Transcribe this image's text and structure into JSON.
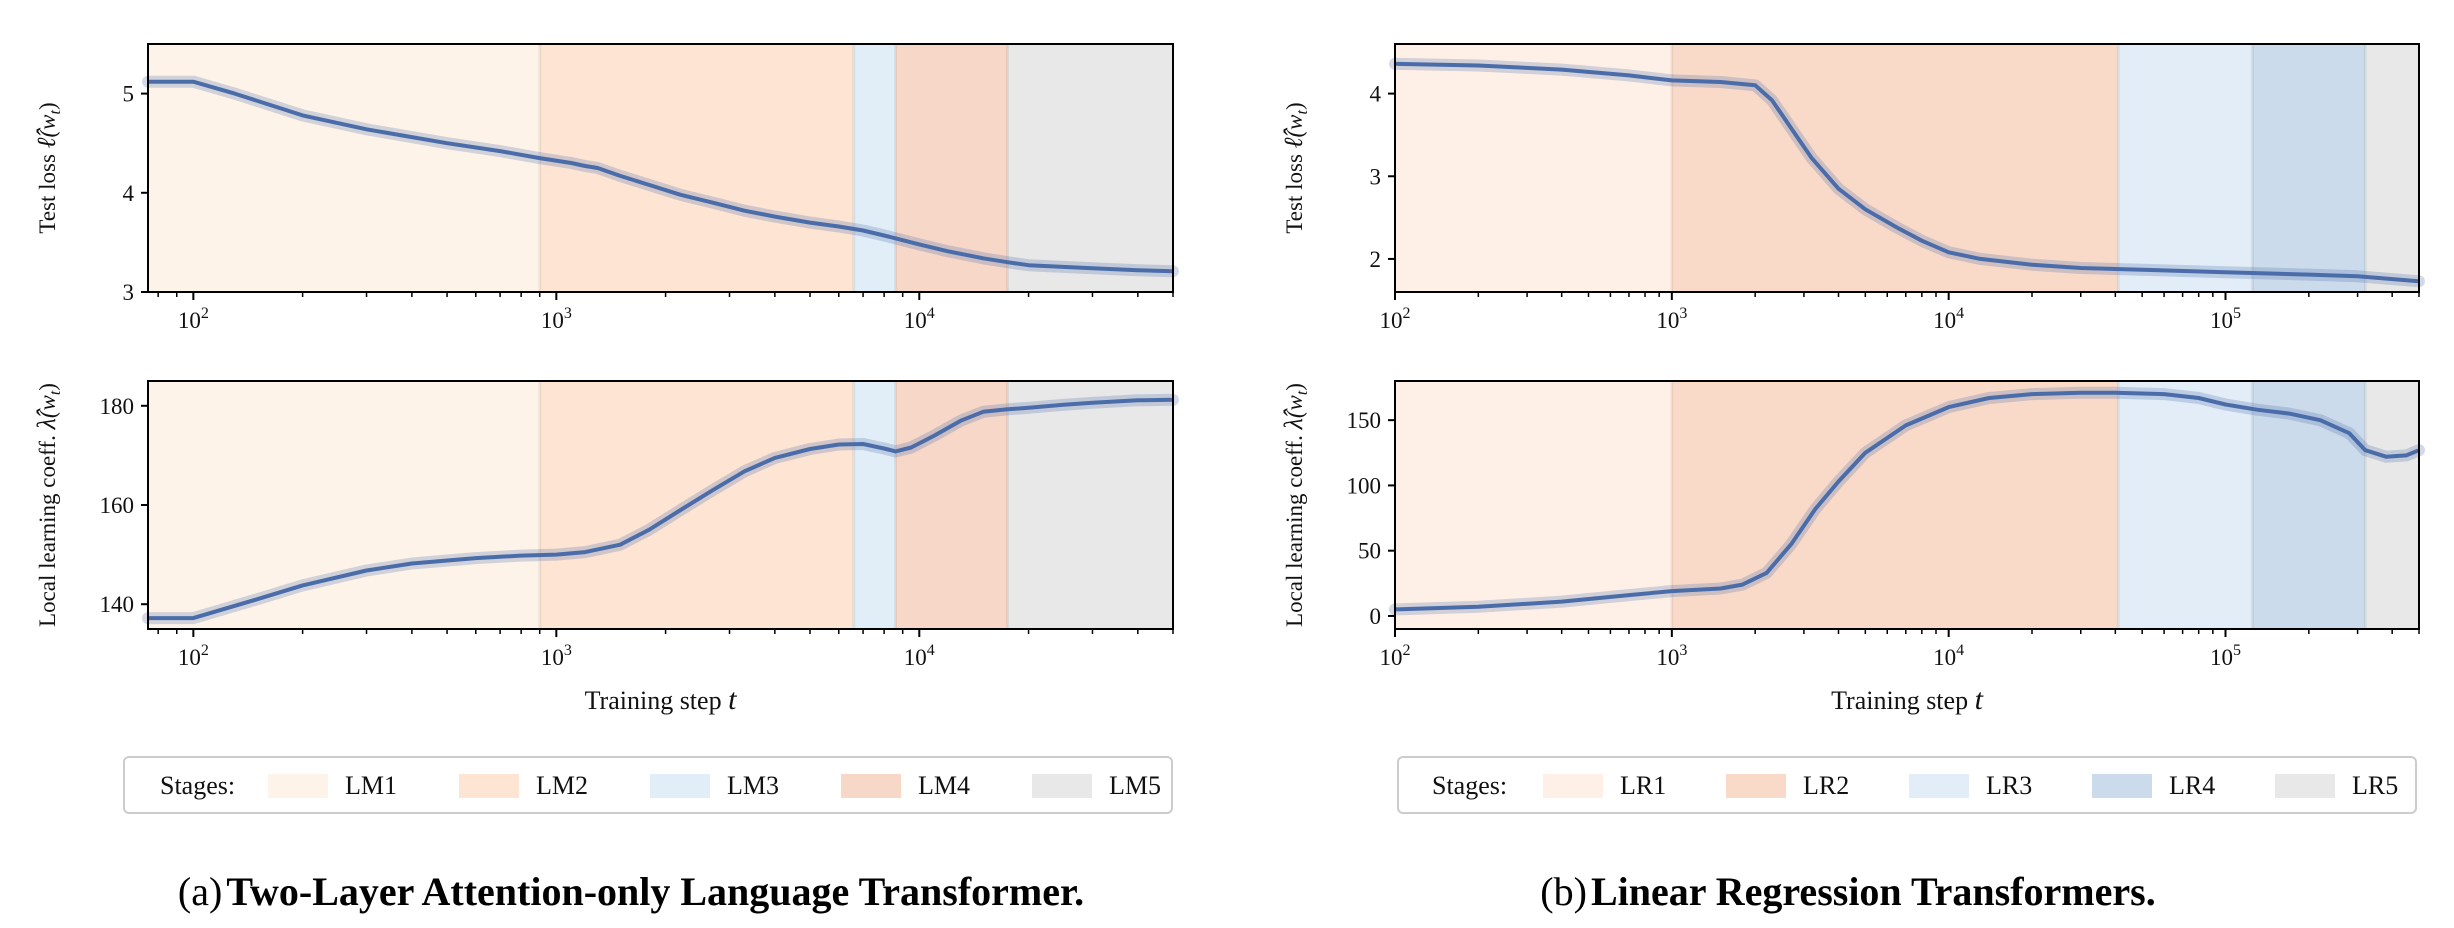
{
  "figure": {
    "panel_a": {
      "caption_prefix": "(a)",
      "caption_title": "Two-Layer Attention-only Language Transformer.",
      "legend": {
        "title": "Stages:",
        "items": [
          {
            "label": "LM1",
            "color": "#fef3e9"
          },
          {
            "label": "LM2",
            "color": "#fde4d3"
          },
          {
            "label": "LM3",
            "color": "#e2eef7"
          },
          {
            "label": "LM4",
            "color": "#f6d7c8"
          },
          {
            "label": "LM5",
            "color": "#e8e8e8"
          }
        ]
      }
    },
    "panel_b": {
      "caption_prefix": "(b)",
      "caption_title": "Linear Regression Transformers.",
      "legend": {
        "title": "Stages:",
        "items": [
          {
            "label": "LR1",
            "color": "#fef0e6"
          },
          {
            "label": "LR2",
            "color": "#f9dac9"
          },
          {
            "label": "LR3",
            "color": "#e2edf7"
          },
          {
            "label": "LR4",
            "color": "#cbdbeb"
          },
          {
            "label": "LR5",
            "color": "#e8e8e8"
          }
        ]
      }
    }
  },
  "chart_data": [
    {
      "id": "a-loss",
      "type": "line",
      "ylabel": "Test loss ℓ̂(w_t)",
      "ylabel_main": "Test loss",
      "ylabel_sym": "ℓ̂",
      "ylabel_arg": "(w",
      "ylabel_sub": "t",
      "ylabel_close": ")",
      "xlabel": "",
      "xscale": "log",
      "xlim": [
        75,
        50000
      ],
      "ylim": [
        3,
        5.5
      ],
      "yticks": [
        3,
        4,
        5
      ],
      "xticks": [
        {
          "value": 100,
          "base": "10",
          "exp": "2"
        },
        {
          "value": 1000,
          "base": "10",
          "exp": "3"
        },
        {
          "value": 10000,
          "base": "10",
          "exp": "4"
        }
      ],
      "stages": [
        [
          75,
          900
        ],
        [
          900,
          6600
        ],
        [
          6600,
          8600
        ],
        [
          8600,
          17500
        ],
        [
          17500,
          50000
        ]
      ],
      "series": [
        {
          "name": "test loss",
          "color": "#4a6daa",
          "x": [
            75,
            100,
            130,
            200,
            300,
            500,
            700,
            900,
            1100,
            1200,
            1300,
            1500,
            1800,
            2200,
            2700,
            3300,
            4000,
            5000,
            6000,
            7000,
            8000,
            10000,
            12000,
            15000,
            17500,
            20000,
            30000,
            40000,
            50000
          ],
          "y": [
            5.12,
            5.12,
            5.0,
            4.78,
            4.64,
            4.5,
            4.42,
            4.35,
            4.3,
            4.27,
            4.25,
            4.17,
            4.08,
            3.98,
            3.9,
            3.82,
            3.76,
            3.7,
            3.66,
            3.62,
            3.57,
            3.48,
            3.41,
            3.34,
            3.3,
            3.27,
            3.24,
            3.22,
            3.21
          ]
        }
      ]
    },
    {
      "id": "a-llc",
      "type": "line",
      "ylabel": "Local learning coeff. λ̂(w_t)",
      "ylabel_main": "Local learning coeff.",
      "ylabel_sym": "λ̂",
      "ylabel_arg": "(w",
      "ylabel_sub": "t",
      "ylabel_close": ")",
      "xlabel": "Training step t",
      "xlabel_main": "Training step",
      "xlabel_var": "t",
      "xscale": "log",
      "xlim": [
        75,
        50000
      ],
      "ylim": [
        135,
        185
      ],
      "yticks": [
        140,
        160,
        180
      ],
      "xticks": [
        {
          "value": 100,
          "base": "10",
          "exp": "2"
        },
        {
          "value": 1000,
          "base": "10",
          "exp": "3"
        },
        {
          "value": 10000,
          "base": "10",
          "exp": "4"
        }
      ],
      "stages": [
        [
          75,
          900
        ],
        [
          900,
          6600
        ],
        [
          6600,
          8600
        ],
        [
          8600,
          17500
        ],
        [
          17500,
          50000
        ]
      ],
      "series": [
        {
          "name": "llc",
          "color": "#4a6daa",
          "x": [
            75,
            100,
            150,
            200,
            300,
            400,
            600,
            800,
            1000,
            1200,
            1500,
            1800,
            2200,
            2700,
            3300,
            4000,
            5000,
            6000,
            7000,
            8000,
            8600,
            9500,
            11000,
            13000,
            15000,
            17500,
            20000,
            25000,
            30000,
            40000,
            50000
          ],
          "y": [
            137.2,
            137.2,
            141,
            143.8,
            146.8,
            148.2,
            149.3,
            149.8,
            150,
            150.5,
            152,
            155,
            159,
            163,
            166.8,
            169.5,
            171.3,
            172.2,
            172.3,
            171.4,
            170.8,
            171.6,
            174,
            177,
            178.8,
            179.3,
            179.6,
            180.2,
            180.6,
            181.1,
            181.2
          ]
        }
      ]
    },
    {
      "id": "b-loss",
      "type": "line",
      "ylabel": "Test loss ℓ̂(w_t)",
      "ylabel_main": "Test loss",
      "ylabel_sym": "ℓ̂",
      "ylabel_arg": "(w",
      "ylabel_sub": "t",
      "ylabel_close": ")",
      "xlabel": "",
      "xscale": "log",
      "xlim": [
        100,
        500000
      ],
      "ylim": [
        1.6,
        4.6
      ],
      "yticks": [
        2,
        3,
        4
      ],
      "xticks": [
        {
          "value": 100,
          "base": "10",
          "exp": "2"
        },
        {
          "value": 1000,
          "base": "10",
          "exp": "3"
        },
        {
          "value": 10000,
          "base": "10",
          "exp": "4"
        },
        {
          "value": 100000,
          "base": "10",
          "exp": "5"
        }
      ],
      "stages": [
        [
          100,
          1000
        ],
        [
          1000,
          41000
        ],
        [
          41000,
          125000
        ],
        [
          125000,
          320000
        ],
        [
          320000,
          500000
        ]
      ],
      "series": [
        {
          "name": "test loss",
          "color": "#4a6daa",
          "x": [
            100,
            200,
            400,
            700,
            1000,
            1500,
            2000,
            2300,
            2700,
            3200,
            4000,
            5000,
            6500,
            8000,
            10000,
            13000,
            20000,
            30000,
            50000,
            100000,
            200000,
            300000,
            500000
          ],
          "y": [
            4.36,
            4.34,
            4.29,
            4.22,
            4.16,
            4.14,
            4.1,
            3.92,
            3.58,
            3.22,
            2.85,
            2.6,
            2.38,
            2.22,
            2.08,
            2.0,
            1.93,
            1.89,
            1.87,
            1.84,
            1.81,
            1.79,
            1.73
          ]
        }
      ]
    },
    {
      "id": "b-llc",
      "type": "line",
      "ylabel": "Local learning coeff. λ̂(w_t)",
      "ylabel_main": "Local learning coeff.",
      "ylabel_sym": "λ̂",
      "ylabel_arg": "(w",
      "ylabel_sub": "t",
      "ylabel_close": ")",
      "xlabel": "Training step t",
      "xlabel_main": "Training step",
      "xlabel_var": "t",
      "xscale": "log",
      "xlim": [
        100,
        500000
      ],
      "ylim": [
        -10,
        180
      ],
      "yticks": [
        0,
        50,
        100,
        150
      ],
      "xticks": [
        {
          "value": 100,
          "base": "10",
          "exp": "2"
        },
        {
          "value": 1000,
          "base": "10",
          "exp": "3"
        },
        {
          "value": 10000,
          "base": "10",
          "exp": "4"
        },
        {
          "value": 100000,
          "base": "10",
          "exp": "5"
        }
      ],
      "stages": [
        [
          100,
          1000
        ],
        [
          1000,
          41000
        ],
        [
          41000,
          125000
        ],
        [
          125000,
          320000
        ],
        [
          320000,
          500000
        ]
      ],
      "series": [
        {
          "name": "llc",
          "color": "#4a6daa",
          "x": [
            100,
            200,
            400,
            700,
            1000,
            1500,
            1800,
            2200,
            2700,
            3300,
            4000,
            5000,
            7000,
            10000,
            14000,
            20000,
            30000,
            40000,
            60000,
            80000,
            100000,
            130000,
            170000,
            220000,
            280000,
            320000,
            380000,
            450000,
            500000
          ],
          "y": [
            5,
            7,
            11,
            16,
            19,
            21,
            24,
            33,
            55,
            82,
            103,
            125,
            146,
            160,
            167,
            170,
            171,
            171,
            170,
            167,
            162,
            158,
            155,
            150,
            140,
            127,
            122,
            123,
            127
          ]
        }
      ]
    }
  ]
}
